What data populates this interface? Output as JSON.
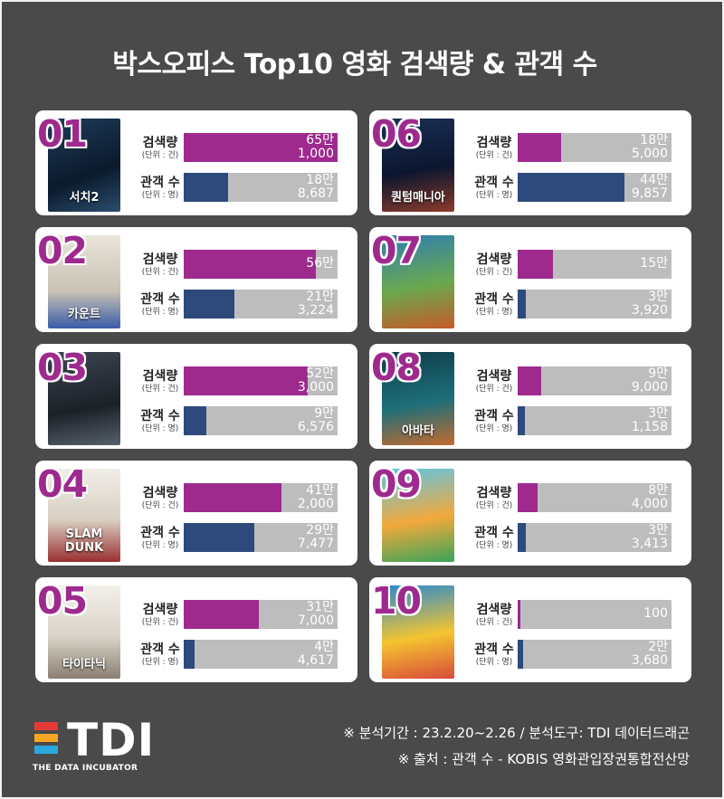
{
  "title": "박스오피스 Top10 영화 검색량 & 관객 수",
  "labels": {
    "search_main": "검색량",
    "search_unit": "(단위 : 건)",
    "aud_main": "관객 수",
    "aud_unit": "(단위 : 명)"
  },
  "colors": {
    "background": "#4a4a4a",
    "search_bar": "#9e2a8e",
    "audience_bar": "#2e4a7d",
    "bar_track": "#bdbdbd",
    "rank": "#9e2a8e"
  },
  "chart_data": {
    "type": "bar",
    "orientation": "horizontal",
    "layout": "small-multiples",
    "bar_max": 650000,
    "movies": [
      {
        "rank": "01",
        "poster_text": "서치2",
        "search": 651000,
        "search_label": [
          "65만",
          "1,000"
        ],
        "audience": 188687,
        "audience_label": [
          "18만",
          "8,687"
        ]
      },
      {
        "rank": "02",
        "poster_text": "카운트",
        "search": 560000,
        "search_label": [
          "56만"
        ],
        "audience": 213224,
        "audience_label": [
          "21만",
          "3,224"
        ]
      },
      {
        "rank": "03",
        "poster_text": "",
        "search": 523000,
        "search_label": [
          "52만",
          "3,000"
        ],
        "audience": 96576,
        "audience_label": [
          "9만",
          "6,576"
        ]
      },
      {
        "rank": "04",
        "poster_text": "SLAM DUNK",
        "search": 412000,
        "search_label": [
          "41만",
          "2,000"
        ],
        "audience": 297477,
        "audience_label": [
          "29만",
          "7,477"
        ]
      },
      {
        "rank": "05",
        "poster_text": "타이타닉",
        "search": 317000,
        "search_label": [
          "31만",
          "7,000"
        ],
        "audience": 44617,
        "audience_label": [
          "4만",
          "4,617"
        ]
      },
      {
        "rank": "06",
        "poster_text": "퀀텀매니아",
        "search": 185000,
        "search_label": [
          "18만",
          "5,000"
        ],
        "audience": 449857,
        "audience_label": [
          "44만",
          "9,857"
        ]
      },
      {
        "rank": "07",
        "poster_text": "",
        "search": 150000,
        "search_label": [
          "15만"
        ],
        "audience": 33920,
        "audience_label": [
          "3만",
          "3,920"
        ]
      },
      {
        "rank": "08",
        "poster_text": "아바타",
        "search": 99000,
        "search_label": [
          "9만",
          "9,000"
        ],
        "audience": 31158,
        "audience_label": [
          "3만",
          "1,158"
        ]
      },
      {
        "rank": "09",
        "poster_text": "",
        "search": 84000,
        "search_label": [
          "8만",
          "4,000"
        ],
        "audience": 33413,
        "audience_label": [
          "3만",
          "3,413"
        ]
      },
      {
        "rank": "10",
        "poster_text": "",
        "search": 100,
        "search_label": [
          "100"
        ],
        "audience": 23680,
        "audience_label": [
          "2만",
          "3,680"
        ]
      }
    ]
  },
  "logo": {
    "text": "TDI",
    "subtext": "THE DATA INCUBATOR",
    "stripe_colors": [
      "#e53935",
      "#f5a623",
      "#29a8e0"
    ]
  },
  "footer": {
    "line1": "※ 분석기간 : 23.2.20~2.26 / 분석도구: TDI 데이터드래곤",
    "line2": "※ 출처 : 관객 수 -  KOBIS 영화관입장권통합전산망"
  }
}
